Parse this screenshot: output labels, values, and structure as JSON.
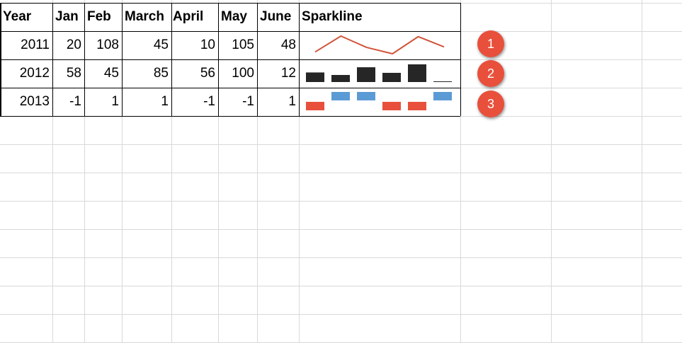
{
  "headers": [
    "Year",
    "Jan",
    "Feb",
    "March",
    "April",
    "May",
    "June",
    "Sparkline"
  ],
  "rows": [
    {
      "year": "2011",
      "values": [
        "20",
        "108",
        "45",
        "10",
        "105",
        "48"
      ],
      "sparkline": "line"
    },
    {
      "year": "2012",
      "values": [
        "58",
        "45",
        "85",
        "56",
        "100",
        "12"
      ],
      "sparkline": "column"
    },
    {
      "year": "2013",
      "values": [
        "-1",
        "1",
        "1",
        "-1",
        "-1",
        "1"
      ],
      "sparkline": "win-loss"
    }
  ],
  "badges": [
    "1",
    "2",
    "3"
  ],
  "colors": {
    "line": "#d1543a",
    "column": "#262626",
    "win": "#5b9bd5",
    "loss": "#e8503c",
    "badge": "#e8503c",
    "gridline": "#d9d9d9"
  }
}
